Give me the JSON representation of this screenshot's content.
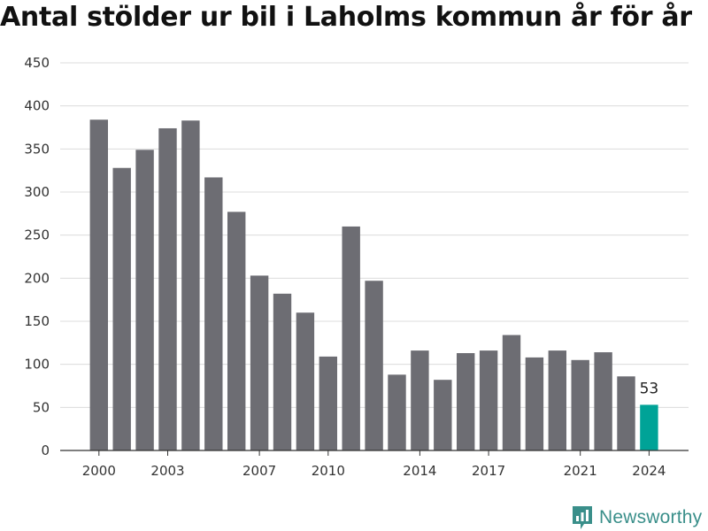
{
  "chart_data": {
    "type": "bar",
    "title": "Antal stölder ur bil i Laholms kommun år för år",
    "xlabel": "",
    "ylabel": "",
    "categories": [
      "2000",
      "2001",
      "2002",
      "2003",
      "2004",
      "2005",
      "2006",
      "2007",
      "2008",
      "2009",
      "2010",
      "2011",
      "2012",
      "2013",
      "2014",
      "2015",
      "2016",
      "2017",
      "2018",
      "2019",
      "2020",
      "2021",
      "2022",
      "2023",
      "2024"
    ],
    "values": [
      384,
      328,
      349,
      374,
      383,
      317,
      277,
      203,
      182,
      160,
      109,
      260,
      197,
      88,
      116,
      82,
      113,
      116,
      134,
      108,
      116,
      105,
      114,
      86,
      53
    ],
    "ylim": [
      0,
      450
    ],
    "yticks": [
      "0",
      "50",
      "100",
      "150",
      "200",
      "250",
      "300",
      "350",
      "400",
      "450"
    ],
    "xtick_labels": [
      "2000",
      "2003",
      "2007",
      "2010",
      "2014",
      "2017",
      "2021",
      "2024"
    ],
    "highlight": {
      "category": "2024",
      "label": "53"
    },
    "grid": true,
    "colors": {
      "bar": "#6d6d73",
      "highlight": "#00a397",
      "grid": "#dcdcdc",
      "axis": "#333333"
    }
  },
  "brand": {
    "name": "Newsworthy",
    "icon": "newsworthy-logo-icon"
  }
}
